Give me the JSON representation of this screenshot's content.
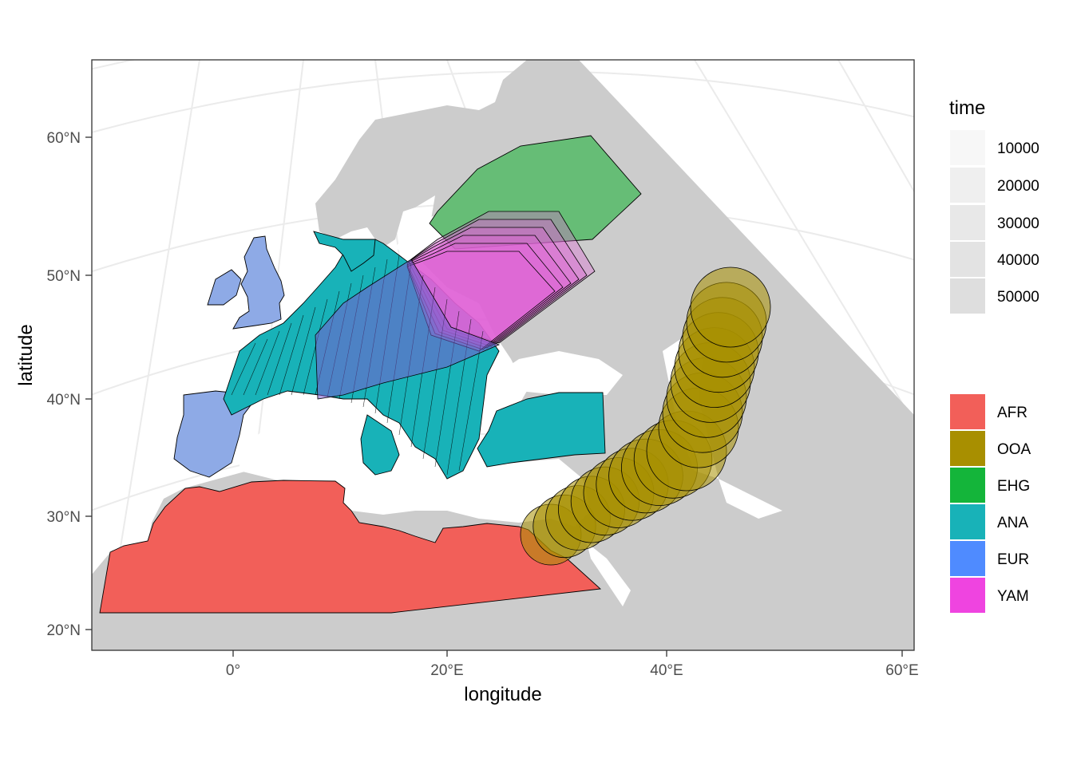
{
  "axes": {
    "xlabel": "longitude",
    "ylabel": "latitude",
    "x_ticks": [
      "0°",
      "20°E",
      "40°E",
      "60°E"
    ],
    "y_ticks": [
      "20°N",
      "30°N",
      "40°N",
      "50°N",
      "60°N"
    ]
  },
  "legend_time": {
    "title": "time",
    "items": [
      "10000",
      "20000",
      "30000",
      "40000",
      "50000"
    ]
  },
  "legend_region": {
    "items": [
      {
        "label": "AFR",
        "color": "#f8766d"
      },
      {
        "label": "OOA",
        "color": "#b79f00"
      },
      {
        "label": "EHG",
        "color": "#00ba38"
      },
      {
        "label": "ANA",
        "color": "#00bfc4"
      },
      {
        "label": "EUR",
        "color": "#619cff"
      },
      {
        "label": "YAM",
        "color": "#f564e3"
      }
    ]
  },
  "colors": {
    "land": "#cccccc",
    "AFR": "#f8766d",
    "OOA": "#b79f00",
    "EHG": "#00ba38",
    "ANA": "#00bfc4",
    "EUR": "#619cff",
    "YAM": "#f564e3",
    "AFR_drawn": "#f25f59",
    "OOA_drawn": "#a88f00",
    "EHG_drawn": "#66bd76",
    "ANA_drawn": "#18b2b8",
    "EUR_drawn": "#8eaae6",
    "YAM_drawn": "#e060d6"
  }
}
